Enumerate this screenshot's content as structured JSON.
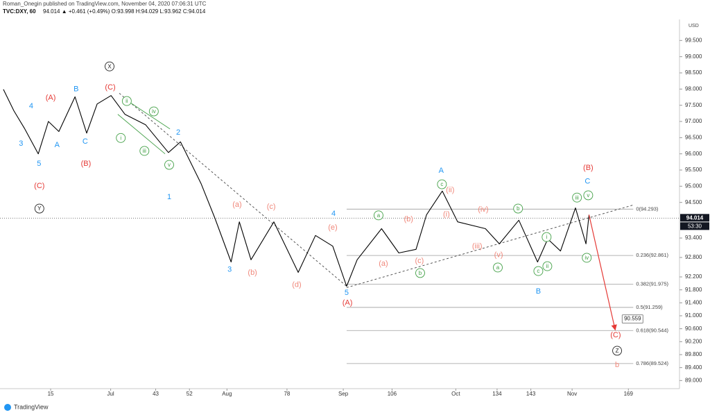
{
  "chart_data": {
    "type": "line",
    "title": "Roman_Onegin published on TradingView.com, November 04, 2020 07:06:31 UTC",
    "symbol": "TVC:DXY, 60",
    "quote": "94.014 ▲ +0.461 (+0.49%) O:93.998 H:94.029 L:93.962 C:94.014",
    "currency": "USD",
    "brand": "TradingView",
    "color": "#000000",
    "x": [
      2.4,
      5.2,
      8.0,
      11.7,
      14.4,
      17.2,
      21.5,
      24.6,
      27.4,
      31.1,
      34.8,
      40.3,
      46.4,
      49.6,
      55.1,
      58.8,
      63.1,
      65.3,
      68.4,
      74.5,
      81.0,
      85.6,
      90.2,
      93.9,
      96.7,
      103.2,
      107.8,
      112.4,
      115.2,
      119.4,
      123.5,
      130.9,
      134.6,
      139.8,
      144.8,
      147.5,
      150.9,
      154.9,
      157.7,
      158.5
    ],
    "values": [
      97.99,
      97.33,
      96.79,
      96.0,
      97.0,
      96.69,
      97.76,
      96.64,
      97.54,
      97.8,
      97.22,
      96.9,
      96.04,
      96.37,
      95.08,
      94.01,
      92.66,
      93.9,
      92.73,
      93.9,
      92.34,
      93.48,
      93.15,
      91.91,
      92.73,
      93.69,
      92.94,
      93.05,
      94.12,
      94.85,
      93.9,
      93.69,
      93.22,
      93.95,
      92.66,
      93.37,
      93.0,
      94.33,
      93.22,
      94.12
    ],
    "xlim": [
      1.5,
      181.7
    ],
    "ylim": [
      88.6,
      100.15
    ],
    "xticks": [
      15,
      {
        "value": 31,
        "label": "Jul"
      },
      43,
      52,
      {
        "value": 62,
        "label": "Aug"
      },
      78,
      {
        "value": 93,
        "label": "Sep"
      },
      106,
      {
        "value": 123,
        "label": "Oct"
      },
      134,
      143,
      {
        "value": 154,
        "label": "Nov"
      },
      169
    ],
    "yticks": [
      {
        "value": 99.5,
        "label": "99.500"
      },
      {
        "value": 99.0,
        "label": "99.000"
      },
      {
        "value": 98.5,
        "label": "98.500"
      },
      {
        "value": 98.0,
        "label": "98.000"
      },
      {
        "value": 97.5,
        "label": "97.500"
      },
      {
        "value": 97.0,
        "label": "97.000"
      },
      {
        "value": 96.5,
        "label": "96.500"
      },
      {
        "value": 96.0,
        "label": "96.000"
      },
      {
        "value": 95.5,
        "label": "95.500"
      },
      {
        "value": 95.0,
        "label": "95.000"
      },
      {
        "value": 94.5,
        "label": "94.500"
      },
      {
        "value": 93.4,
        "label": "93.400"
      },
      {
        "value": 92.8,
        "label": "92.800"
      },
      {
        "value": 92.2,
        "label": "92.200"
      },
      {
        "value": 91.8,
        "label": "91.800"
      },
      {
        "value": 91.4,
        "label": "91.400"
      },
      {
        "value": 91.0,
        "label": "91.000"
      },
      {
        "value": 90.6,
        "label": "90.600"
      },
      {
        "value": 90.2,
        "label": "90.200"
      },
      {
        "value": 89.8,
        "label": "89.800"
      },
      {
        "value": 89.4,
        "label": "89.400"
      },
      {
        "value": 89.0,
        "label": "89.000"
      }
    ],
    "last_price": 94.014,
    "countdown": "53:30",
    "fib_range": [
      93.9,
      170.3
    ],
    "fib": [
      {
        "value": 94.293,
        "label": "0(94.293)"
      },
      {
        "value": 92.861,
        "label": "0.236(92.861)"
      },
      {
        "value": 91.975,
        "label": "0.382(91.975)"
      },
      {
        "value": 91.259,
        "label": "0.5(91.259)"
      },
      {
        "value": 90.544,
        "label": "0.618(90.544)"
      },
      {
        "value": 89.524,
        "label": "0.786(89.524)"
      }
    ],
    "trendlines": [
      {
        "x": [
          33.3,
          93.9
        ],
        "y": [
          97.87,
          91.91
        ],
        "color": "#444444",
        "dashed": true
      },
      {
        "x": [
          93.9,
          170.3
        ],
        "y": [
          91.87,
          94.42
        ],
        "color": "#444444",
        "dashed": true
      },
      {
        "x": [
          34.4,
          46.8
        ],
        "y": [
          97.72,
          96.77
        ],
        "color": "#43a047",
        "dashed": false
      },
      {
        "x": [
          32.9,
          45.5
        ],
        "y": [
          97.22,
          96.0
        ],
        "color": "#43a047",
        "dashed": false
      }
    ],
    "projection": {
      "x": [
        158.5,
        165.5
      ],
      "y": [
        94.12,
        90.559
      ],
      "color": "#e53935"
    },
    "annotations": [
      {
        "text": "4",
        "x": 9.8,
        "y": 97.48,
        "color": "#2196f3"
      },
      {
        "text": "3",
        "x": 7.1,
        "y": 96.32,
        "color": "#2196f3"
      },
      {
        "text": "5",
        "x": 11.9,
        "y": 95.7,
        "color": "#2196f3"
      },
      {
        "text": "(C)",
        "x": 12.0,
        "y": 95.02,
        "color": "#e53935"
      },
      {
        "text": "Y",
        "x": 12.0,
        "y": 94.31,
        "color": "#222222",
        "circled": true
      },
      {
        "text": "(A)",
        "x": 15.0,
        "y": 97.74,
        "color": "#e53935"
      },
      {
        "text": "A",
        "x": 16.7,
        "y": 96.28,
        "color": "#2196f3"
      },
      {
        "text": "B",
        "x": 21.8,
        "y": 98.01,
        "color": "#2196f3"
      },
      {
        "text": "C",
        "x": 24.2,
        "y": 96.39,
        "color": "#2196f3"
      },
      {
        "text": "(B)",
        "x": 24.4,
        "y": 95.7,
        "color": "#e53935"
      },
      {
        "text": "(C)",
        "x": 30.9,
        "y": 98.06,
        "color": "#e53935"
      },
      {
        "text": "X",
        "x": 30.7,
        "y": 98.7,
        "color": "#222222",
        "circled": true
      },
      {
        "text": "ii",
        "x": 35.3,
        "y": 97.63,
        "color": "#43a047",
        "circled": true
      },
      {
        "text": "i",
        "x": 33.7,
        "y": 96.49,
        "color": "#43a047",
        "circled": true
      },
      {
        "text": "iv",
        "x": 42.5,
        "y": 97.31,
        "color": "#43a047",
        "circled": true
      },
      {
        "text": "iii",
        "x": 40.0,
        "y": 96.09,
        "color": "#43a047",
        "circled": true
      },
      {
        "text": "v",
        "x": 46.6,
        "y": 95.66,
        "color": "#43a047",
        "circled": true
      },
      {
        "text": "2",
        "x": 49.0,
        "y": 96.67,
        "color": "#2196f3"
      },
      {
        "text": "1",
        "x": 46.6,
        "y": 94.67,
        "color": "#2196f3"
      },
      {
        "text": "3",
        "x": 62.7,
        "y": 92.43,
        "color": "#2196f3"
      },
      {
        "text": "(a)",
        "x": 64.7,
        "y": 94.44,
        "color": "#f0877a"
      },
      {
        "text": "(b)",
        "x": 68.8,
        "y": 92.34,
        "color": "#f0877a"
      },
      {
        "text": "(c)",
        "x": 73.8,
        "y": 94.37,
        "color": "#f0877a"
      },
      {
        "text": "(d)",
        "x": 80.6,
        "y": 91.96,
        "color": "#f0877a"
      },
      {
        "text": "(e)",
        "x": 90.2,
        "y": 93.73,
        "color": "#f0877a"
      },
      {
        "text": "4",
        "x": 90.4,
        "y": 94.16,
        "color": "#2196f3"
      },
      {
        "text": "5",
        "x": 93.9,
        "y": 91.72,
        "color": "#2196f3"
      },
      {
        "text": "(A)",
        "x": 94.1,
        "y": 91.4,
        "color": "#e53935"
      },
      {
        "text": "a",
        "x": 102.4,
        "y": 94.1,
        "color": "#43a047",
        "circled": true
      },
      {
        "text": "(a)",
        "x": 103.7,
        "y": 92.62,
        "color": "#f0877a"
      },
      {
        "text": "(b)",
        "x": 110.4,
        "y": 93.99,
        "color": "#f0877a"
      },
      {
        "text": "(c)",
        "x": 113.3,
        "y": 92.7,
        "color": "#f0877a"
      },
      {
        "text": "b",
        "x": 113.5,
        "y": 92.32,
        "color": "#43a047",
        "circled": true
      },
      {
        "text": "A",
        "x": 119.1,
        "y": 95.49,
        "color": "#2196f3"
      },
      {
        "text": "c",
        "x": 119.3,
        "y": 95.06,
        "color": "#43a047",
        "circled": true
      },
      {
        "text": "(ii)",
        "x": 121.5,
        "y": 94.89,
        "color": "#f0877a"
      },
      {
        "text": "(i)",
        "x": 120.5,
        "y": 94.14,
        "color": "#f0877a"
      },
      {
        "text": "(iv)",
        "x": 130.3,
        "y": 94.29,
        "color": "#f0877a"
      },
      {
        "text": "(iii)",
        "x": 128.7,
        "y": 93.15,
        "color": "#f0877a"
      },
      {
        "text": "(v)",
        "x": 134.4,
        "y": 92.88,
        "color": "#f0877a"
      },
      {
        "text": "a",
        "x": 134.2,
        "y": 92.49,
        "color": "#43a047",
        "circled": true
      },
      {
        "text": "b",
        "x": 139.6,
        "y": 94.31,
        "color": "#43a047",
        "circled": true
      },
      {
        "text": "c",
        "x": 145.0,
        "y": 92.38,
        "color": "#43a047",
        "circled": true
      },
      {
        "text": "B",
        "x": 145.0,
        "y": 91.76,
        "color": "#2196f3"
      },
      {
        "text": "i",
        "x": 147.2,
        "y": 93.43,
        "color": "#43a047",
        "circled": true
      },
      {
        "text": "ii",
        "x": 147.4,
        "y": 92.53,
        "color": "#43a047",
        "circled": true
      },
      {
        "text": "iii",
        "x": 155.3,
        "y": 94.65,
        "color": "#43a047",
        "circled": true
      },
      {
        "text": "iv",
        "x": 157.9,
        "y": 92.79,
        "color": "#43a047",
        "circled": true
      },
      {
        "text": "(B)",
        "x": 158.3,
        "y": 95.57,
        "color": "#e53935"
      },
      {
        "text": "C",
        "x": 158.1,
        "y": 95.15,
        "color": "#2196f3"
      },
      {
        "text": "v",
        "x": 158.3,
        "y": 94.72,
        "color": "#43a047",
        "circled": true
      },
      {
        "text": "(C)",
        "x": 165.6,
        "y": 90.41,
        "color": "#e53935"
      },
      {
        "text": "Z",
        "x": 166.0,
        "y": 89.92,
        "color": "#222222",
        "circled": true
      },
      {
        "text": "b",
        "x": 166.0,
        "y": 89.49,
        "color": "#f0877a"
      }
    ]
  }
}
